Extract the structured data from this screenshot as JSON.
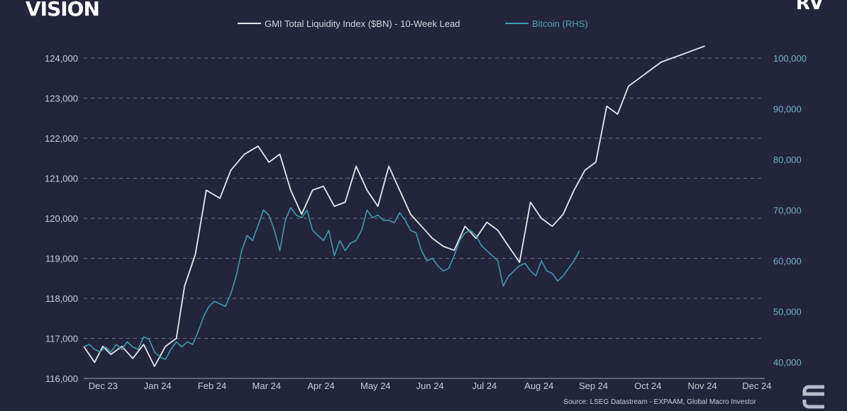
{
  "brand": {
    "left": "VISION",
    "right": "RV"
  },
  "source": "Source: LSEG Datastream - EXPAAM, Global Macro Investor",
  "colors": {
    "background": "#23253d",
    "liquidity": "#e6e8ef",
    "bitcoin": "#3f9aae",
    "grid": "#8a8ea6"
  },
  "icons": {
    "corner": "gmi-logo-icon"
  },
  "chart_data": {
    "type": "line",
    "title": "",
    "xlabel": "",
    "ylabel": "",
    "y2label": "",
    "x_ticks": [
      "Dec 23",
      "Jan 24",
      "Feb 24",
      "Mar 24",
      "Apr 24",
      "May 24",
      "Jun 24",
      "Jul 24",
      "Aug 24",
      "Sep 24",
      "Oct 24",
      "Nov 24",
      "Dec 24"
    ],
    "y_left_ticks": [
      "116,000",
      "117,000",
      "118,000",
      "119,000",
      "120,000",
      "121,000",
      "122,000",
      "123,000",
      "124,000"
    ],
    "y_left_values": [
      116000,
      117000,
      118000,
      119000,
      120000,
      121000,
      122000,
      123000,
      124000
    ],
    "y_right_ticks": [
      "40,000",
      "50,000",
      "60,000",
      "70,000",
      "80,000",
      "90,000",
      "100,000"
    ],
    "y_right_values": [
      40000,
      50000,
      60000,
      70000,
      80000,
      90000,
      100000
    ],
    "ylim": [
      116000,
      124000
    ],
    "y2lim": [
      40000,
      100000
    ],
    "x_domain": [
      -0.2,
      12.3
    ],
    "grid": true,
    "legend": "top-center",
    "series": [
      {
        "name": "GMI Total Liquidity Index ($BN) - 10-Week Lead",
        "axis": "left",
        "color": "#e6e8ef",
        "x": [
          -0.2,
          0.0,
          0.15,
          0.3,
          0.5,
          0.7,
          0.9,
          1.1,
          1.3,
          1.5,
          1.65,
          1.85,
          2.05,
          2.3,
          2.5,
          2.75,
          3.0,
          3.2,
          3.4,
          3.6,
          3.8,
          4.0,
          4.2,
          4.4,
          4.6,
          4.8,
          5.0,
          5.2,
          5.4,
          5.6,
          5.8,
          6.0,
          6.2,
          6.4,
          6.6,
          6.8,
          7.0,
          7.2,
          7.4,
          7.6,
          7.8,
          8.0,
          8.2,
          8.4,
          8.6,
          8.8,
          9.0,
          9.2,
          9.4,
          9.6,
          9.8,
          10.0,
          10.2,
          10.4,
          10.6,
          10.8,
          11.0,
          11.2
        ],
        "y": [
          116800,
          116400,
          116800,
          116600,
          116800,
          116500,
          116850,
          116300,
          116800,
          117000,
          118300,
          119100,
          120700,
          120500,
          121200,
          121600,
          121800,
          121400,
          121600,
          120700,
          120100,
          120700,
          120800,
          120300,
          120400,
          121300,
          120700,
          120300,
          121300,
          120700,
          120100,
          119800,
          119500,
          119300,
          119200,
          119800,
          119500,
          119900,
          119700,
          119300,
          118900,
          120400,
          120000,
          119800,
          120100,
          120700,
          121200,
          121400,
          122800,
          122600,
          123300,
          123500,
          123700,
          123900,
          124000,
          124100,
          124200,
          124300
        ]
      },
      {
        "name": "Bitcoin (RHS)",
        "axis": "right",
        "color": "#3f9aae",
        "x": [
          -0.2,
          -0.1,
          0.0,
          0.1,
          0.2,
          0.3,
          0.4,
          0.5,
          0.6,
          0.7,
          0.8,
          0.9,
          1.0,
          1.1,
          1.2,
          1.3,
          1.4,
          1.5,
          1.6,
          1.7,
          1.8,
          1.9,
          2.0,
          2.1,
          2.2,
          2.3,
          2.4,
          2.5,
          2.6,
          2.7,
          2.8,
          2.9,
          3.0,
          3.1,
          3.2,
          3.3,
          3.4,
          3.5,
          3.6,
          3.7,
          3.8,
          3.9,
          4.0,
          4.1,
          4.2,
          4.3,
          4.4,
          4.5,
          4.6,
          4.7,
          4.8,
          4.9,
          5.0,
          5.1,
          5.2,
          5.3,
          5.4,
          5.5,
          5.6,
          5.7,
          5.8,
          5.9,
          6.0,
          6.1,
          6.2,
          6.3,
          6.4,
          6.5,
          6.6,
          6.7,
          6.8,
          6.9,
          7.0,
          7.1,
          7.2,
          7.3,
          7.4,
          7.5,
          7.6,
          7.7,
          7.8,
          7.9,
          8.0,
          8.1,
          8.2,
          8.3,
          8.4,
          8.5,
          8.6,
          8.7,
          8.8,
          8.9
        ],
        "y": [
          43000,
          43500,
          42500,
          42000,
          43000,
          42000,
          43500,
          42500,
          44000,
          43000,
          42500,
          45000,
          44500,
          42000,
          41000,
          40500,
          42500,
          44000,
          43000,
          44000,
          43500,
          46000,
          49000,
          51000,
          52000,
          51500,
          51000,
          53500,
          57000,
          62000,
          65000,
          64000,
          67000,
          70000,
          69000,
          66000,
          62000,
          68000,
          70500,
          69000,
          68500,
          70000,
          66000,
          65000,
          64000,
          66000,
          61000,
          64000,
          62000,
          63500,
          64000,
          66000,
          70000,
          68500,
          69000,
          68000,
          68000,
          67500,
          69500,
          68000,
          66000,
          65500,
          62000,
          60000,
          60500,
          59000,
          58000,
          58500,
          61000,
          64000,
          65500,
          66000,
          65000,
          63000,
          62000,
          61000,
          60000,
          55000,
          57000,
          58000,
          59000,
          59500,
          58000,
          57000,
          60000,
          58000,
          57500,
          56000,
          57000,
          58500,
          60000,
          62000
        ]
      }
    ]
  }
}
